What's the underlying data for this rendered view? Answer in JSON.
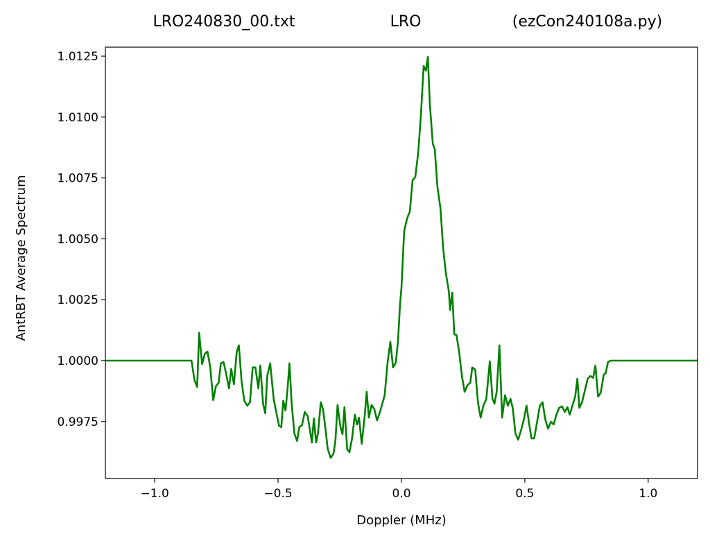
{
  "chart_data": {
    "type": "line",
    "title": [
      "LRO240830_00.txt",
      "LRO",
      "(ezCon240108a.py)"
    ],
    "xlabel": "Doppler (MHz)",
    "ylabel": "AntRBT Average Spectrum",
    "color": "#008000",
    "grid": false,
    "xlim": [
      -1.2,
      1.2
    ],
    "ylim": [
      0.99516,
      1.01287
    ],
    "xticks": [
      {
        "value": -1.0,
        "label": "−1.0"
      },
      {
        "value": -0.5,
        "label": "−0.5"
      },
      {
        "value": 0.0,
        "label": "0.0"
      },
      0.5,
      {
        "value": 1.0,
        "label": "1.0"
      }
    ],
    "yticks": [
      0.9975,
      {
        "value": 1.0,
        "label": "1.0000"
      },
      1.0025,
      {
        "value": 1.005,
        "label": "1.0050"
      },
      1.0075,
      {
        "value": 1.01,
        "label": "1.0100"
      },
      1.0125
    ],
    "x": [
      -1.2,
      -0.851,
      -0.839,
      -0.828,
      -0.82,
      -0.808,
      -0.797,
      -0.786,
      -0.775,
      -0.763,
      -0.752,
      -0.741,
      -0.732,
      -0.721,
      -0.71,
      -0.699,
      -0.69,
      -0.679,
      -0.668,
      -0.659,
      -0.648,
      -0.637,
      -0.625,
      -0.614,
      -0.603,
      -0.592,
      -0.58,
      -0.572,
      -0.561,
      -0.552,
      -0.544,
      -0.532,
      -0.518,
      -0.507,
      -0.496,
      -0.487,
      -0.479,
      -0.47,
      -0.462,
      -0.454,
      -0.445,
      -0.434,
      -0.423,
      -0.414,
      -0.403,
      -0.392,
      -0.38,
      -0.372,
      -0.363,
      -0.355,
      -0.346,
      -0.338,
      -0.327,
      -0.318,
      -0.31,
      -0.299,
      -0.287,
      -0.276,
      -0.268,
      -0.259,
      -0.248,
      -0.239,
      -0.231,
      -0.22,
      -0.211,
      -0.2,
      -0.189,
      -0.18,
      -0.172,
      -0.161,
      -0.149,
      -0.141,
      -0.132,
      -0.121,
      -0.11,
      -0.099,
      -0.087,
      -0.076,
      -0.068,
      -0.056,
      -0.045,
      -0.034,
      -0.023,
      -0.014,
      -0.006,
      0.0,
      0.011,
      0.023,
      0.034,
      0.045,
      0.056,
      0.068,
      0.079,
      0.09,
      0.099,
      0.107,
      0.115,
      0.127,
      0.135,
      0.146,
      0.158,
      0.169,
      0.18,
      0.192,
      0.197,
      0.206,
      0.214,
      0.223,
      0.234,
      0.245,
      0.256,
      0.268,
      0.279,
      0.287,
      0.299,
      0.31,
      0.321,
      0.332,
      0.344,
      0.358,
      0.369,
      0.377,
      0.386,
      0.397,
      0.408,
      0.42,
      0.431,
      0.442,
      0.451,
      0.462,
      0.473,
      0.485,
      0.496,
      0.507,
      0.518,
      0.527,
      0.538,
      0.549,
      0.561,
      0.572,
      0.583,
      0.594,
      0.606,
      0.617,
      0.628,
      0.639,
      0.651,
      0.662,
      0.673,
      0.682,
      0.693,
      0.704,
      0.713,
      0.721,
      0.732,
      0.744,
      0.755,
      0.766,
      0.777,
      0.786,
      0.797,
      0.808,
      0.82,
      0.828,
      0.837,
      0.848,
      1.2
    ],
    "values": [
      1.0,
      1.0,
      0.9992,
      0.99892,
      1.00114,
      0.99986,
      1.00028,
      1.00037,
      0.99972,
      0.99838,
      0.99895,
      0.99909,
      0.99989,
      0.99994,
      0.99943,
      0.99886,
      0.99966,
      0.99903,
      1.00034,
      1.00063,
      0.99915,
      0.99835,
      0.99815,
      0.99829,
      0.99972,
      0.99972,
      0.99886,
      0.9998,
      0.99823,
      0.99784,
      0.99937,
      0.99989,
      0.99843,
      0.99786,
      0.99732,
      0.99727,
      0.99835,
      0.99795,
      0.9988,
      0.99989,
      0.99823,
      0.99701,
      0.9967,
      0.99727,
      0.99735,
      0.99789,
      0.99772,
      0.99721,
      0.99664,
      0.99763,
      0.99664,
      0.99704,
      0.99829,
      0.99801,
      0.99738,
      0.99638,
      0.99601,
      0.99616,
      0.99667,
      0.99818,
      0.99732,
      0.99698,
      0.99809,
      0.99636,
      0.99624,
      0.99681,
      0.99778,
      0.99738,
      0.99766,
      0.99658,
      0.99772,
      0.99872,
      0.99766,
      0.99818,
      0.99801,
      0.99755,
      0.99789,
      0.99829,
      0.99858,
      0.99994,
      1.00077,
      0.99972,
      0.99991,
      1.0008,
      1.00228,
      1.00299,
      1.00532,
      1.00584,
      1.00612,
      1.0074,
      1.00754,
      1.00854,
      1.01011,
      1.0121,
      1.0119,
      1.01247,
      1.01053,
      1.00891,
      1.00868,
      1.00712,
      1.00626,
      1.00461,
      1.00359,
      1.00285,
      1.00208,
      1.00279,
      1.00108,
      1.00105,
      1.00034,
      0.99937,
      0.99872,
      0.999,
      0.99909,
      0.99972,
      0.99963,
      0.99829,
      0.99766,
      0.99815,
      0.99843,
      0.99997,
      0.99843,
      0.99823,
      0.99872,
      1.00063,
      0.99766,
      0.99858,
      0.99815,
      0.99843,
      0.99806,
      0.99701,
      0.99675,
      0.99715,
      0.99758,
      0.99815,
      0.99738,
      0.99681,
      0.99681,
      0.99744,
      0.99815,
      0.99829,
      0.99758,
      0.99721,
      0.99749,
      0.99738,
      0.99778,
      0.99806,
      0.99812,
      0.99789,
      0.99809,
      0.99778,
      0.99815,
      0.99852,
      0.99926,
      0.99806,
      0.99829,
      0.9988,
      0.99926,
      0.99937,
      0.99929,
      0.9998,
      0.99852,
      0.99869,
      0.99943,
      0.99949,
      0.99994,
      1.0,
      1.0
    ]
  }
}
